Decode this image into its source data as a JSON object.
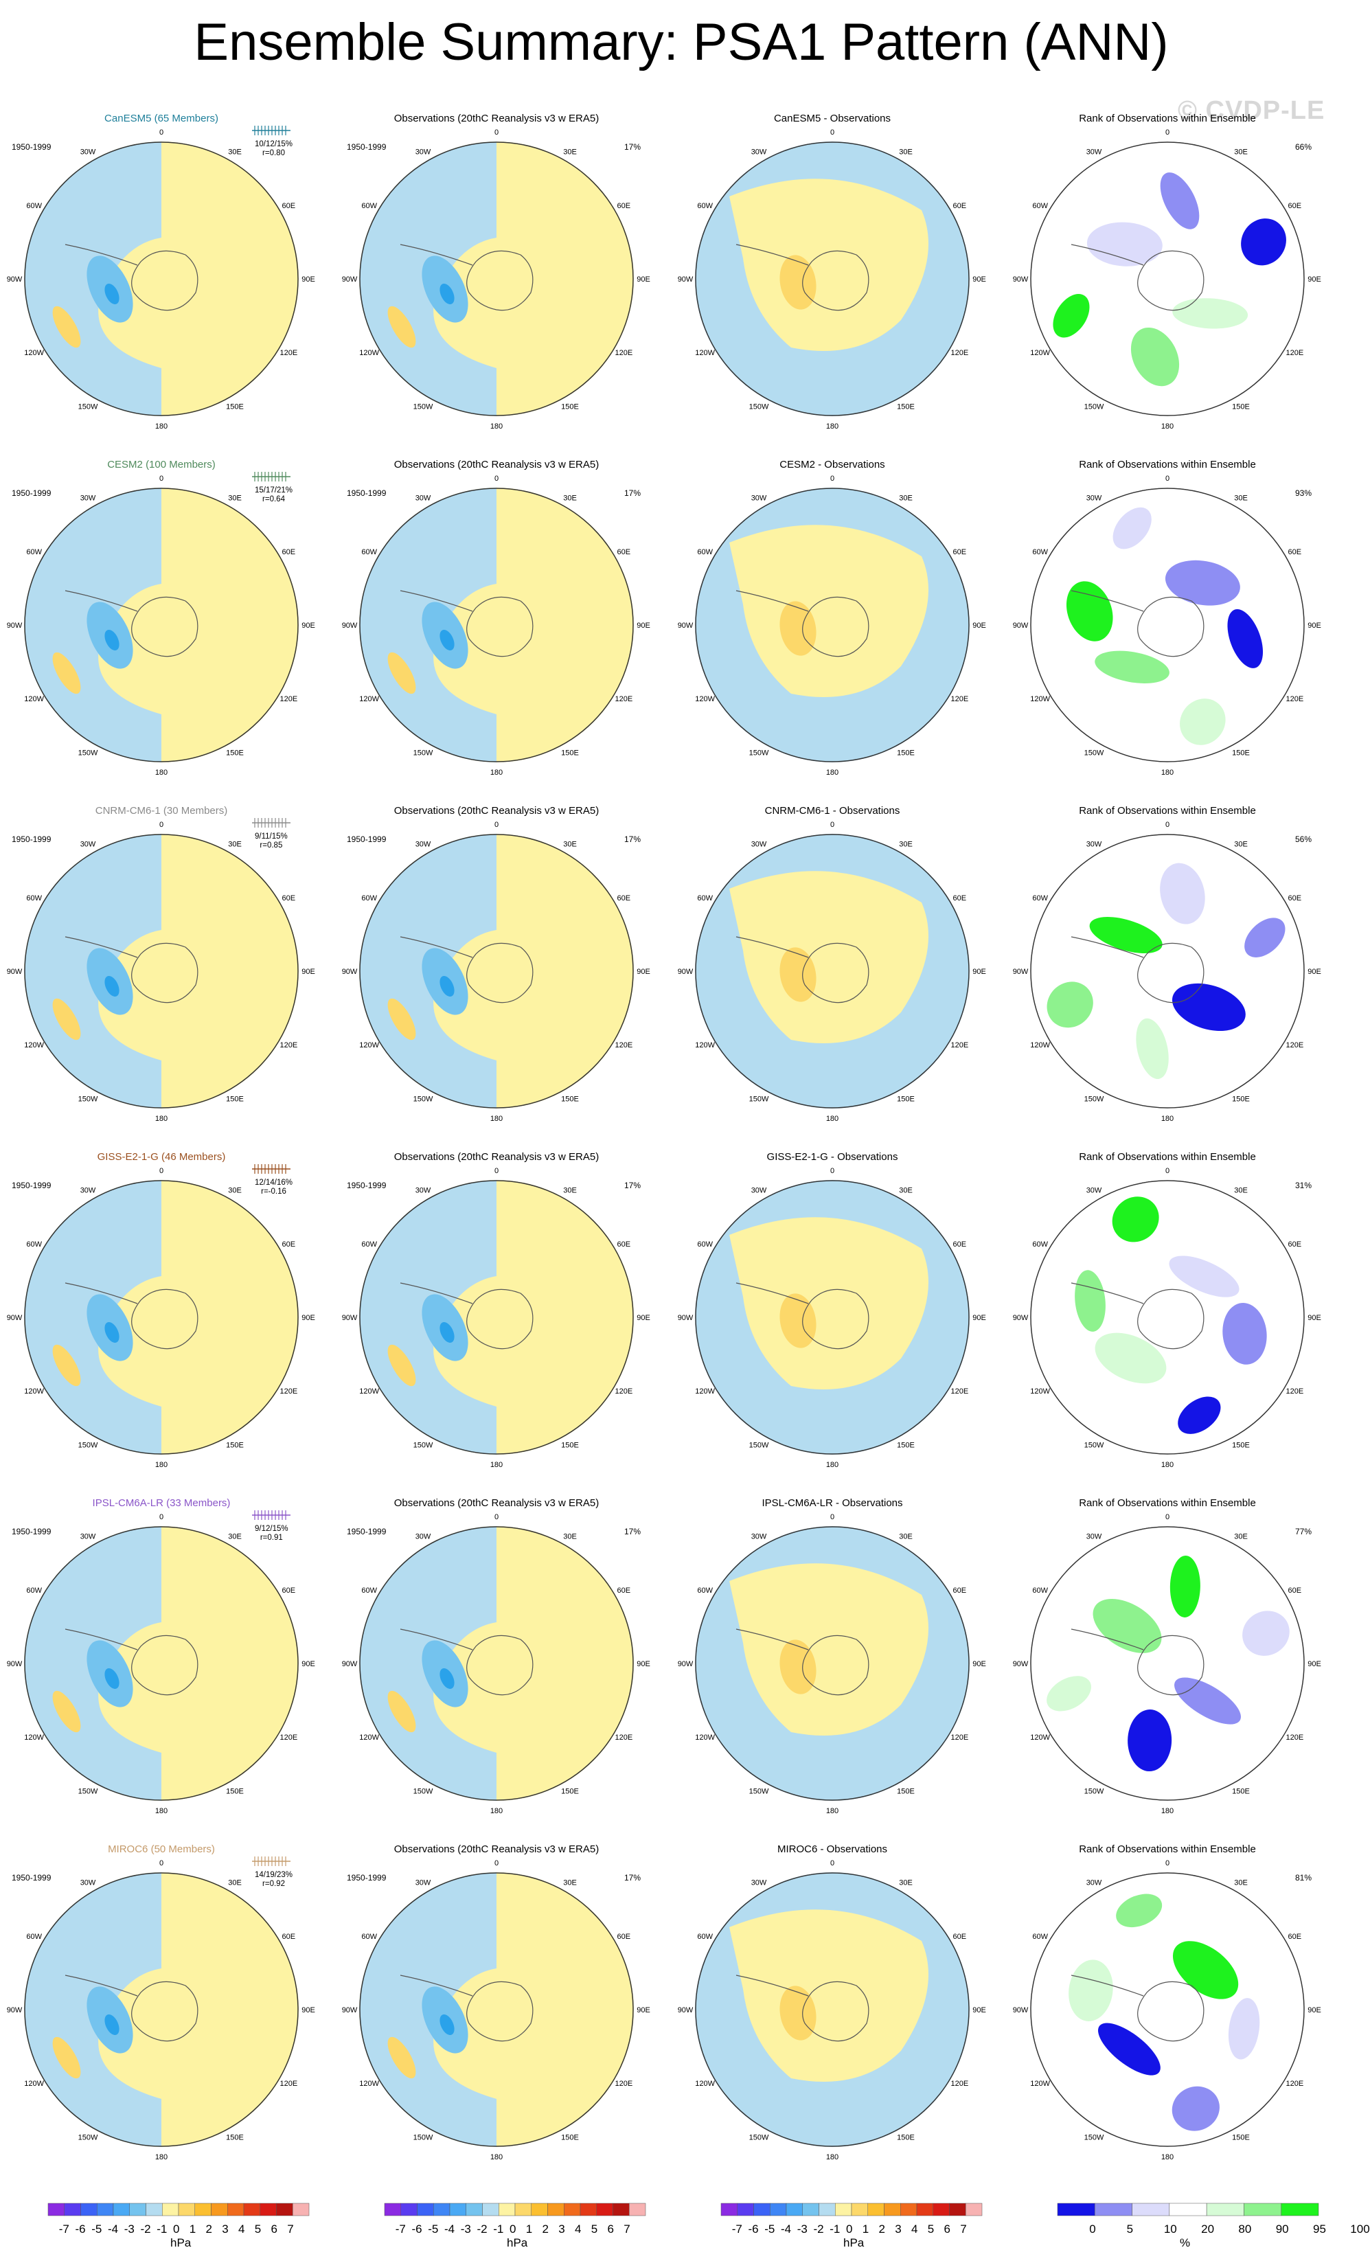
{
  "title": "Ensemble Summary: PSA1 Pattern (ANN)",
  "watermark": "© CVDP-LE",
  "period": "1950-1999",
  "obs_title": "Observations (20thC Reanalysis v3 w ERA5)",
  "obs_pct": "17%",
  "rank_title": "Rank of Observations within Ensemble",
  "lon_labels": [
    "0",
    "30E",
    "60E",
    "90E",
    "120E",
    "150E",
    "180",
    "150W",
    "120W",
    "90W",
    "60W",
    "30W"
  ],
  "colors": {
    "yellow": "#fdf3a3",
    "lightblue": "#b4dcf0",
    "midblue": "#74c3ee",
    "deepblue": "#2aa2ea",
    "lightorange": "#fcd86a",
    "orange": "#fbbf30",
    "darkorange": "#f7991e",
    "rank_light": "#dcdcfb",
    "rank_mid": "#8e8ef3",
    "rank_dark": "#1414e6",
    "rank_lightgreen": "#d6fbd6",
    "rank_green": "#8ef28e",
    "rank_darkgreen": "#1ef21e"
  },
  "chart_data": {
    "type": "heatmap",
    "models": [
      {
        "name": "CanESM5 (65 Members)",
        "color": "#1e7f9a",
        "stats": [
          "10/12/15%",
          "r=0.80"
        ],
        "diff_title": "CanESM5 - Observations",
        "rank_pct": "66%"
      },
      {
        "name": "CESM2 (100 Members)",
        "color": "#4f8a5c",
        "stats": [
          "15/17/21%",
          "r=0.64"
        ],
        "diff_title": "CESM2 - Observations",
        "rank_pct": "93%"
      },
      {
        "name": "CNRM-CM6-1 (30 Members)",
        "color": "#8a8a8a",
        "stats": [
          "9/11/15%",
          "r=0.85"
        ],
        "diff_title": "CNRM-CM6-1 - Observations",
        "rank_pct": "56%"
      },
      {
        "name": "GISS-E2-1-G (46 Members)",
        "color": "#9a4f1e",
        "stats": [
          "12/14/16%",
          "r=-0.16"
        ],
        "diff_title": "GISS-E2-1-G - Observations",
        "rank_pct": "31%"
      },
      {
        "name": "IPSL-CM6A-LR (33 Members)",
        "color": "#8a55c8",
        "stats": [
          "9/12/15%",
          "r=0.91"
        ],
        "diff_title": "IPSL-CM6A-LR - Observations",
        "rank_pct": "77%"
      },
      {
        "name": "MIROC6 (50 Members)",
        "color": "#c49a6a",
        "stats": [
          "14/19/23%",
          "r=0.92"
        ],
        "diff_title": "MIROC6 - Observations",
        "rank_pct": "81%"
      }
    ],
    "colorbar_hpa": {
      "labels": [
        "-7",
        "-6",
        "-5",
        "-4",
        "-3",
        "-2",
        "-1",
        "0",
        "1",
        "2",
        "3",
        "4",
        "5",
        "6",
        "7"
      ],
      "colors": [
        "#8b2be2",
        "#5a3cf0",
        "#3b63f6",
        "#3f86f5",
        "#4aa9f4",
        "#74c3ee",
        "#b4dcf0",
        "#fdf3a3",
        "#fcd86a",
        "#fbbf30",
        "#f7991e",
        "#f06a1c",
        "#e33a17",
        "#d81b15",
        "#b51510",
        "#f7b2b2"
      ],
      "unit": "hPa"
    },
    "colorbar_rank": {
      "labels": [
        "0",
        "5",
        "10",
        "20",
        "80",
        "90",
        "95",
        "100"
      ],
      "colors": [
        "#1414e6",
        "#8e8ef3",
        "#dcdcfb",
        "#ffffff",
        "#d6fbd6",
        "#8ef28e",
        "#1ef21e"
      ],
      "unit": "%"
    }
  }
}
